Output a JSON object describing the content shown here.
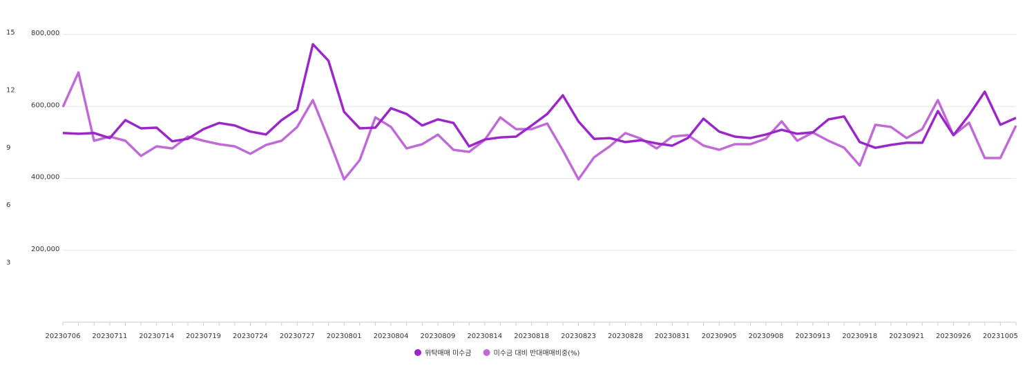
{
  "chart_data": {
    "type": "line",
    "categories": [
      "20230706",
      null,
      null,
      "20230711",
      null,
      null,
      "20230714",
      null,
      null,
      "20230719",
      null,
      null,
      "20230724",
      null,
      null,
      "20230727",
      null,
      null,
      "20230801",
      null,
      null,
      "20230804",
      null,
      null,
      "20230809",
      null,
      null,
      "20230814",
      null,
      null,
      "20230818",
      null,
      null,
      "20230823",
      null,
      null,
      "20230828",
      null,
      null,
      "20230831",
      null,
      null,
      "20230905",
      null,
      null,
      "20230908",
      null,
      null,
      "20230913",
      null,
      null,
      "20230918",
      null,
      null,
      "20230921",
      null,
      null,
      "20230926",
      null,
      null,
      "20231005",
      null
    ],
    "series": [
      {
        "name": "위탁매매 미수금",
        "color": "#9b27c9",
        "values": [
          526000,
          524000,
          526000,
          512000,
          562000,
          539000,
          541000,
          503000,
          510000,
          537000,
          554000,
          547000,
          530000,
          522000,
          562000,
          591000,
          773000,
          727000,
          585000,
          539000,
          541000,
          595000,
          579000,
          547000,
          564000,
          554000,
          489000,
          508000,
          514000,
          516000,
          547000,
          579000,
          631000,
          558000,
          510000,
          512000,
          501000,
          506000,
          497000,
          491000,
          512000,
          566000,
          530000,
          516000,
          512000,
          522000,
          535000,
          524000,
          528000,
          564000,
          572000,
          501000,
          485000,
          493000,
          499000,
          499000,
          587000,
          520000,
          576000,
          641000,
          549000,
          568000
        ]
      },
      {
        "name": "미수금 대비 반대매매비중(%)",
        "color": "#c06ad8",
        "axis": "y2",
        "values": [
          11.22,
          13.02,
          9.46,
          9.68,
          9.46,
          8.67,
          9.17,
          9.06,
          9.68,
          9.46,
          9.28,
          9.17,
          8.78,
          9.24,
          9.46,
          10.18,
          11.58,
          9.57,
          7.45,
          8.45,
          10.68,
          10.18,
          9.06,
          9.28,
          9.78,
          8.99,
          8.88,
          9.5,
          10.68,
          10.07,
          10.07,
          10.36,
          8.96,
          7.45,
          8.6,
          9.17,
          9.86,
          9.57,
          9.06,
          9.68,
          9.75,
          9.21,
          8.99,
          9.28,
          9.28,
          9.57,
          10.47,
          9.46,
          9.89,
          9.46,
          9.1,
          8.17,
          10.29,
          10.18,
          9.6,
          10.07,
          11.58,
          9.75,
          10.4,
          8.56,
          8.56,
          10.25
        ]
      }
    ],
    "ylim": [
      0,
      800000
    ],
    "yticks": [
      {
        "value": 200000,
        "label": "200,000"
      },
      {
        "value": 400000,
        "label": "400,000"
      },
      {
        "value": 600000,
        "label": "600,000"
      },
      {
        "value": 800000,
        "label": "800,000"
      }
    ],
    "y2lim": [
      0,
      15
    ],
    "y2ticks": [
      3,
      6,
      9,
      12,
      15
    ],
    "grid": true,
    "legend": "bottom"
  }
}
